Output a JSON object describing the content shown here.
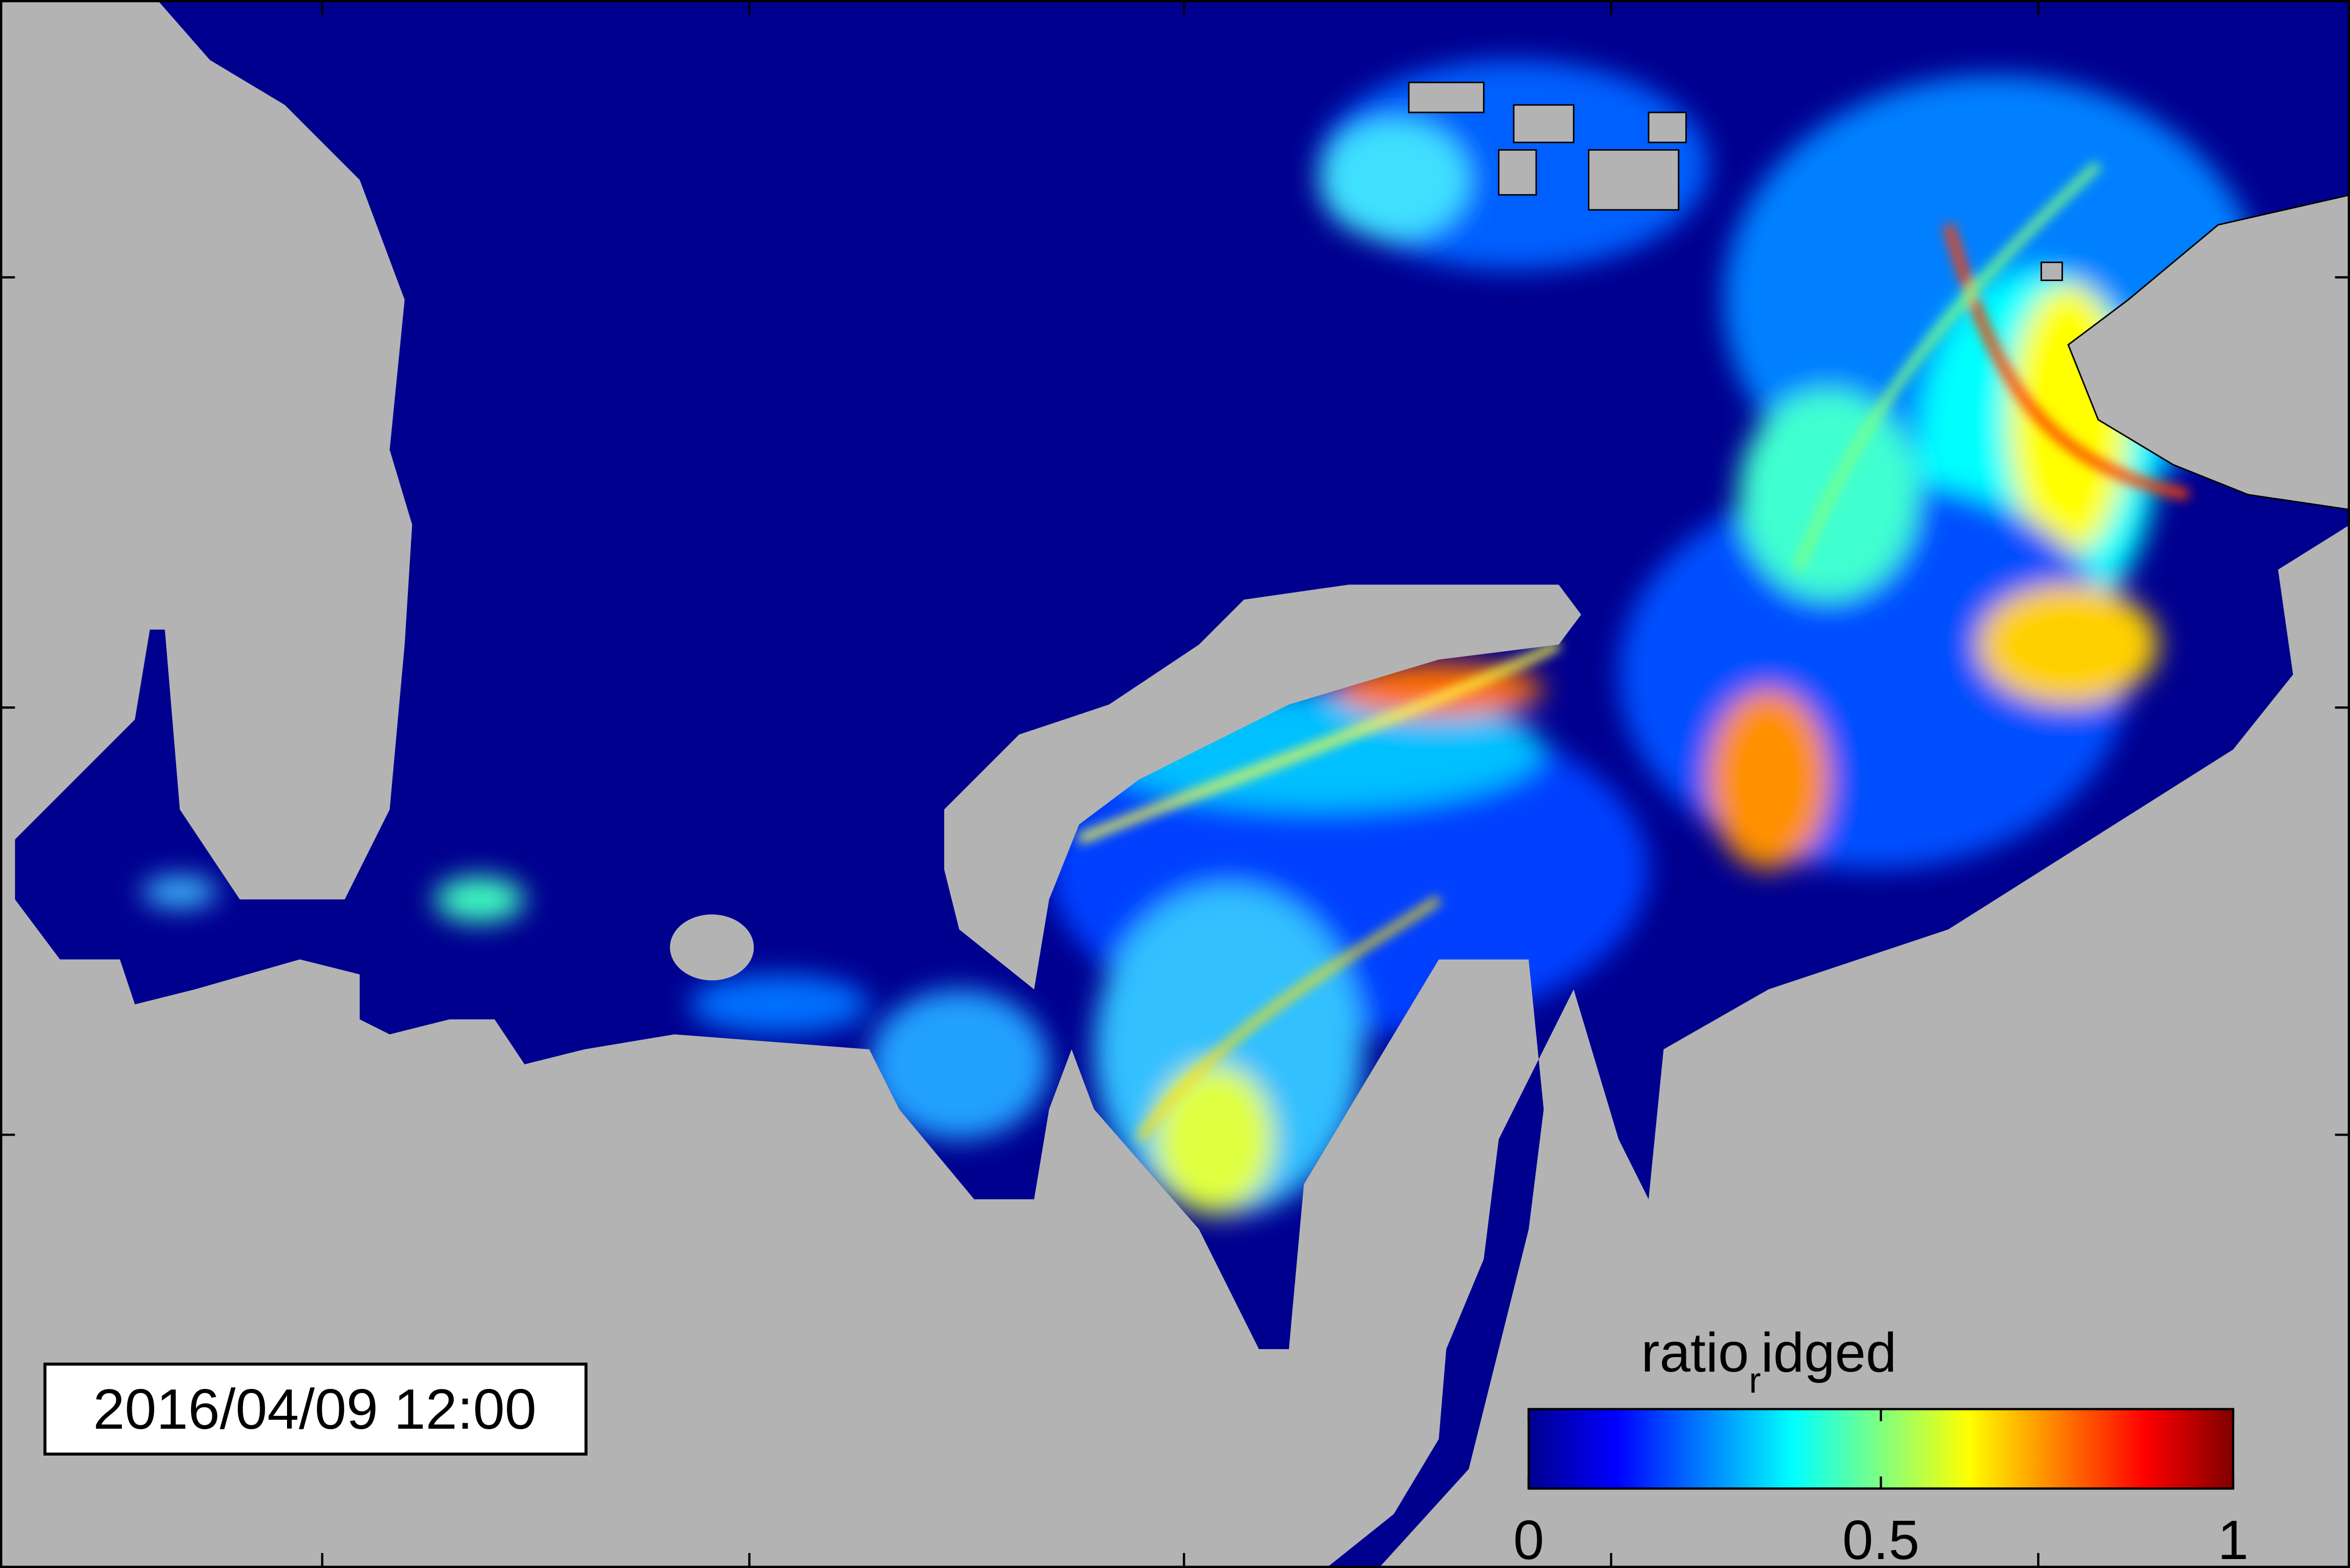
{
  "map": {
    "timestamp": "2016/04/09 12:00",
    "colorbar": {
      "label": {
        "main": "ratio",
        "sub": "r",
        "rest": "idged"
      },
      "lim": [
        0,
        1
      ],
      "ticks": [
        0,
        0.5,
        1
      ],
      "colors": [
        "#00008f",
        "#0000ff",
        "#0080ff",
        "#00ffff",
        "#80ff80",
        "#ffff00",
        "#ff8000",
        "#ff0000",
        "#800000"
      ]
    }
  }
}
